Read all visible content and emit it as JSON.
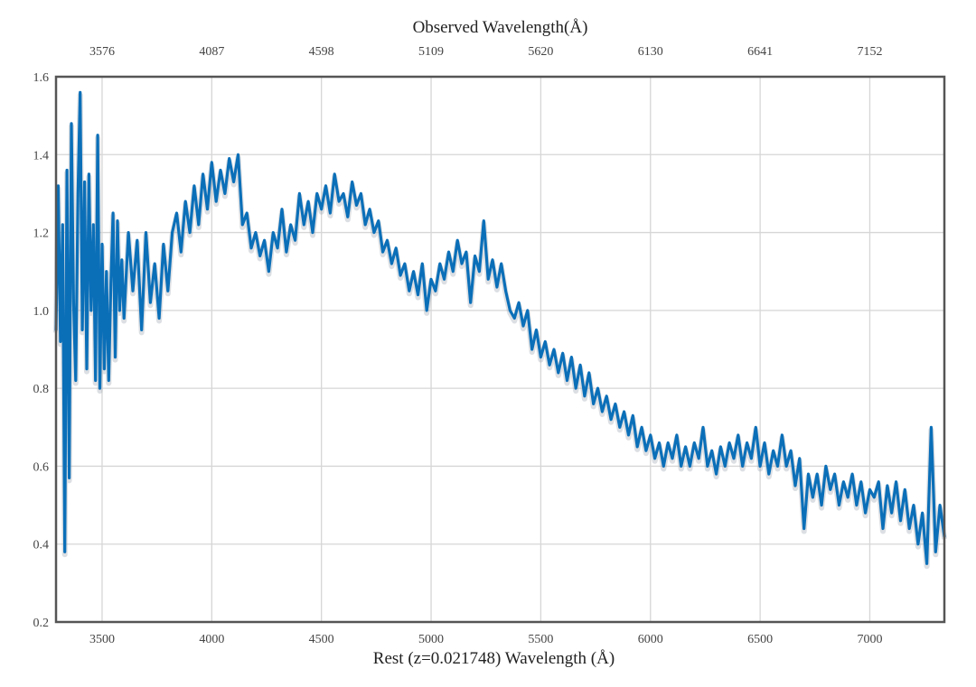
{
  "chart_data": {
    "type": "line",
    "title": "",
    "xlabel": "Rest (z=0.021748) Wavelength (Å)",
    "x2label": "Observed Wavelength(Å)",
    "ylabel": "",
    "xlim": [
      3290,
      7340
    ],
    "ylim": [
      0.2,
      1.6
    ],
    "x_ticks": [
      3500,
      4000,
      4500,
      5000,
      5500,
      6000,
      6500,
      7000
    ],
    "x_tick_labels": [
      "3500",
      "4000",
      "4500",
      "5000",
      "5500",
      "6000",
      "6500",
      "7000"
    ],
    "x2_tick_positions": [
      3500,
      4000,
      4500,
      5000,
      5500,
      6000,
      6500,
      7000
    ],
    "x2_tick_labels": [
      "3576",
      "4087",
      "4598",
      "5109",
      "5620",
      "6130",
      "6641",
      "7152"
    ],
    "y_ticks": [
      0.2,
      0.4,
      0.6,
      0.8,
      1.0,
      1.2,
      1.4,
      1.6
    ],
    "y_tick_labels": [
      "0.2",
      "0.4",
      "0.6",
      "0.8",
      "1.0",
      "1.2",
      "1.4",
      "1.6"
    ],
    "grid": true,
    "line_color": "#0b6fb8",
    "series": [
      {
        "x": [
          3290,
          3300,
          3310,
          3320,
          3330,
          3340,
          3350,
          3360,
          3370,
          3380,
          3390,
          3400,
          3410,
          3420,
          3430,
          3440,
          3450,
          3460,
          3470,
          3480,
          3490,
          3500,
          3510,
          3520,
          3530,
          3540,
          3550,
          3560,
          3570,
          3580,
          3590,
          3600,
          3620,
          3640,
          3660,
          3680,
          3700,
          3720,
          3740,
          3760,
          3780,
          3800,
          3820,
          3840,
          3860,
          3880,
          3900,
          3920,
          3940,
          3960,
          3980,
          4000,
          4020,
          4040,
          4060,
          4080,
          4100,
          4120,
          4140,
          4160,
          4180,
          4200,
          4220,
          4240,
          4260,
          4280,
          4300,
          4320,
          4340,
          4360,
          4380,
          4400,
          4420,
          4440,
          4460,
          4480,
          4500,
          4520,
          4540,
          4560,
          4580,
          4600,
          4620,
          4640,
          4660,
          4680,
          4700,
          4720,
          4740,
          4760,
          4780,
          4800,
          4820,
          4840,
          4860,
          4880,
          4900,
          4920,
          4940,
          4960,
          4980,
          5000,
          5020,
          5040,
          5060,
          5080,
          5100,
          5120,
          5140,
          5160,
          5180,
          5200,
          5220,
          5240,
          5260,
          5280,
          5300,
          5320,
          5340,
          5360,
          5380,
          5400,
          5420,
          5440,
          5460,
          5480,
          5500,
          5520,
          5540,
          5560,
          5580,
          5600,
          5620,
          5640,
          5660,
          5680,
          5700,
          5720,
          5740,
          5760,
          5780,
          5800,
          5820,
          5840,
          5860,
          5880,
          5900,
          5920,
          5940,
          5960,
          5980,
          6000,
          6020,
          6040,
          6060,
          6080,
          6100,
          6120,
          6140,
          6160,
          6180,
          6200,
          6220,
          6240,
          6260,
          6280,
          6300,
          6320,
          6340,
          6360,
          6380,
          6400,
          6420,
          6440,
          6460,
          6480,
          6500,
          6520,
          6540,
          6560,
          6580,
          6600,
          6620,
          6640,
          6660,
          6680,
          6700,
          6720,
          6740,
          6760,
          6780,
          6800,
          6820,
          6840,
          6860,
          6880,
          6900,
          6920,
          6940,
          6960,
          6980,
          7000,
          7020,
          7040,
          7060,
          7080,
          7100,
          7120,
          7140,
          7160,
          7180,
          7200,
          7220,
          7240,
          7260,
          7280,
          7300,
          7320,
          7340
        ],
        "y": [
          0.95,
          1.32,
          0.92,
          1.22,
          0.38,
          1.36,
          0.57,
          1.48,
          1.02,
          0.82,
          1.3,
          1.56,
          0.95,
          1.33,
          0.85,
          1.35,
          1.0,
          1.22,
          0.82,
          1.45,
          0.8,
          1.17,
          0.85,
          1.1,
          0.82,
          1.07,
          1.25,
          0.88,
          1.23,
          1.0,
          1.13,
          0.98,
          1.2,
          1.05,
          1.18,
          0.95,
          1.2,
          1.02,
          1.12,
          0.98,
          1.17,
          1.05,
          1.2,
          1.25,
          1.15,
          1.28,
          1.2,
          1.32,
          1.22,
          1.35,
          1.26,
          1.38,
          1.28,
          1.36,
          1.3,
          1.39,
          1.33,
          1.4,
          1.22,
          1.25,
          1.16,
          1.2,
          1.14,
          1.18,
          1.1,
          1.2,
          1.16,
          1.26,
          1.15,
          1.22,
          1.18,
          1.3,
          1.22,
          1.28,
          1.2,
          1.3,
          1.26,
          1.32,
          1.25,
          1.35,
          1.28,
          1.3,
          1.24,
          1.33,
          1.27,
          1.3,
          1.22,
          1.26,
          1.2,
          1.23,
          1.15,
          1.18,
          1.12,
          1.16,
          1.09,
          1.12,
          1.05,
          1.1,
          1.04,
          1.12,
          1.0,
          1.08,
          1.05,
          1.12,
          1.08,
          1.15,
          1.1,
          1.18,
          1.12,
          1.15,
          1.02,
          1.14,
          1.1,
          1.23,
          1.08,
          1.13,
          1.06,
          1.12,
          1.05,
          1.0,
          0.98,
          1.02,
          0.96,
          1.0,
          0.9,
          0.95,
          0.88,
          0.92,
          0.86,
          0.9,
          0.84,
          0.89,
          0.82,
          0.88,
          0.8,
          0.86,
          0.78,
          0.84,
          0.76,
          0.8,
          0.74,
          0.78,
          0.72,
          0.76,
          0.7,
          0.74,
          0.68,
          0.73,
          0.65,
          0.7,
          0.64,
          0.68,
          0.62,
          0.66,
          0.6,
          0.66,
          0.62,
          0.68,
          0.6,
          0.65,
          0.6,
          0.66,
          0.62,
          0.7,
          0.6,
          0.64,
          0.58,
          0.65,
          0.6,
          0.66,
          0.62,
          0.68,
          0.6,
          0.66,
          0.62,
          0.7,
          0.6,
          0.66,
          0.58,
          0.64,
          0.6,
          0.68,
          0.6,
          0.64,
          0.55,
          0.62,
          0.44,
          0.58,
          0.52,
          0.58,
          0.5,
          0.6,
          0.54,
          0.58,
          0.5,
          0.56,
          0.52,
          0.58,
          0.5,
          0.56,
          0.48,
          0.54,
          0.52,
          0.56,
          0.44,
          0.55,
          0.48,
          0.56,
          0.46,
          0.54,
          0.44,
          0.5,
          0.4,
          0.48,
          0.35,
          0.7,
          0.38,
          0.5,
          0.42
        ]
      }
    ]
  }
}
